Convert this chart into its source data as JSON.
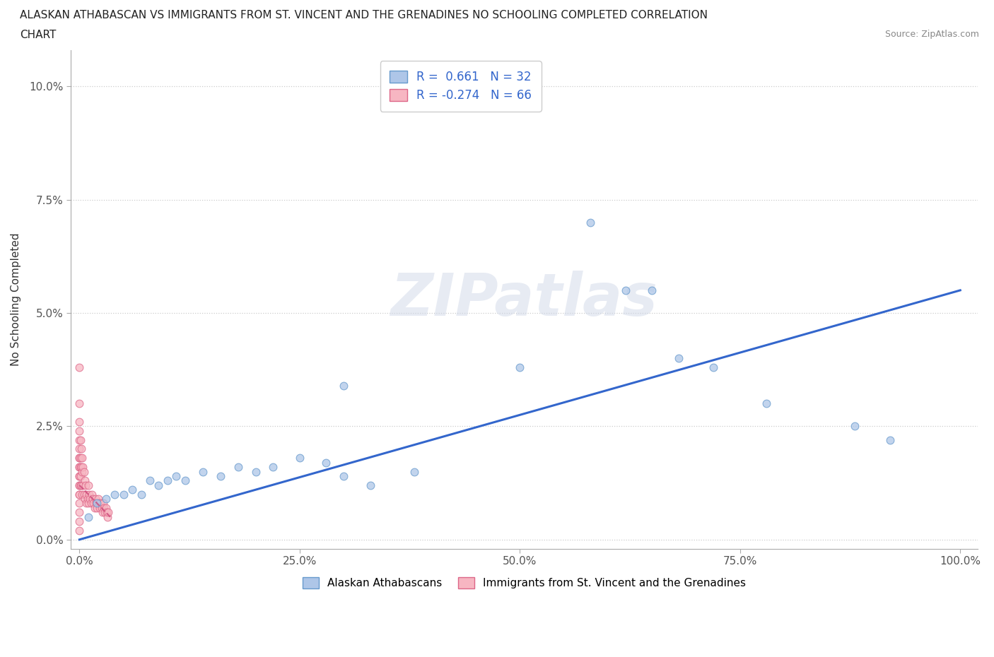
{
  "title_line1": "ALASKAN ATHABASCAN VS IMMIGRANTS FROM ST. VINCENT AND THE GRENADINES NO SCHOOLING COMPLETED CORRELATION",
  "title_line2": "CHART",
  "source": "Source: ZipAtlas.com",
  "ylabel": "No Schooling Completed",
  "xlabel": "",
  "blue_r": 0.661,
  "blue_n": 32,
  "pink_r": -0.274,
  "pink_n": 66,
  "blue_color": "#aec6e8",
  "pink_color": "#f7b6c2",
  "blue_edge": "#6699cc",
  "pink_edge": "#dd6688",
  "trend_blue": "#3366cc",
  "trend_pink": "#cc4477",
  "blue_scatter_x": [
    0.01,
    0.02,
    0.03,
    0.04,
    0.05,
    0.06,
    0.07,
    0.08,
    0.09,
    0.1,
    0.11,
    0.12,
    0.14,
    0.16,
    0.18,
    0.2,
    0.22,
    0.25,
    0.28,
    0.3,
    0.33,
    0.38,
    0.5,
    0.58,
    0.62,
    0.65,
    0.68,
    0.72,
    0.78,
    0.88,
    0.92,
    0.3
  ],
  "blue_scatter_y": [
    0.005,
    0.008,
    0.009,
    0.01,
    0.01,
    0.011,
    0.01,
    0.013,
    0.012,
    0.013,
    0.014,
    0.013,
    0.015,
    0.014,
    0.016,
    0.015,
    0.016,
    0.018,
    0.017,
    0.034,
    0.012,
    0.015,
    0.038,
    0.07,
    0.055,
    0.055,
    0.04,
    0.038,
    0.03,
    0.025,
    0.022,
    0.014
  ],
  "pink_scatter_x": [
    0.0,
    0.0,
    0.0,
    0.0,
    0.0,
    0.0,
    0.0,
    0.0,
    0.0,
    0.0,
    0.0,
    0.0,
    0.0,
    0.0,
    0.0,
    0.0,
    0.0,
    0.0,
    0.0,
    0.0,
    0.001,
    0.001,
    0.001,
    0.001,
    0.001,
    0.002,
    0.002,
    0.002,
    0.003,
    0.003,
    0.003,
    0.004,
    0.004,
    0.005,
    0.005,
    0.006,
    0.006,
    0.007,
    0.008,
    0.008,
    0.009,
    0.01,
    0.01,
    0.011,
    0.012,
    0.013,
    0.014,
    0.015,
    0.016,
    0.017,
    0.018,
    0.019,
    0.02,
    0.021,
    0.022,
    0.023,
    0.024,
    0.025,
    0.026,
    0.027,
    0.028,
    0.029,
    0.03,
    0.031,
    0.032,
    0.033
  ],
  "pink_scatter_y": [
    0.03,
    0.026,
    0.024,
    0.022,
    0.02,
    0.018,
    0.016,
    0.014,
    0.012,
    0.01,
    0.008,
    0.006,
    0.004,
    0.002,
    0.018,
    0.016,
    0.014,
    0.012,
    0.01,
    0.038,
    0.022,
    0.018,
    0.016,
    0.014,
    0.012,
    0.02,
    0.016,
    0.012,
    0.018,
    0.015,
    0.01,
    0.016,
    0.012,
    0.015,
    0.01,
    0.013,
    0.009,
    0.012,
    0.01,
    0.008,
    0.009,
    0.012,
    0.008,
    0.01,
    0.009,
    0.008,
    0.01,
    0.009,
    0.008,
    0.007,
    0.009,
    0.008,
    0.007,
    0.009,
    0.008,
    0.007,
    0.008,
    0.007,
    0.006,
    0.008,
    0.007,
    0.006,
    0.007,
    0.006,
    0.005,
    0.006
  ],
  "blue_trend_x": [
    0.0,
    1.0
  ],
  "blue_trend_y": [
    0.0,
    0.055
  ],
  "pink_trend_x": [
    0.0,
    0.035
  ],
  "pink_trend_y": [
    0.012,
    0.005
  ],
  "xlim": [
    -0.01,
    1.02
  ],
  "ylim": [
    -0.002,
    0.108
  ],
  "yticks": [
    0.0,
    0.025,
    0.05,
    0.075,
    0.1
  ],
  "ytick_labels": [
    "0.0%",
    "2.5%",
    "5.0%",
    "7.5%",
    "10.0%"
  ],
  "xticks": [
    0.0,
    0.25,
    0.5,
    0.75,
    1.0
  ],
  "xtick_labels": [
    "0.0%",
    "25.0%",
    "50.0%",
    "75.0%",
    "100.0%"
  ],
  "watermark": "ZIPatlas",
  "legend_blue_label": "Alaskan Athabascans",
  "legend_pink_label": "Immigrants from St. Vincent and the Grenadines",
  "marker_size": 60
}
